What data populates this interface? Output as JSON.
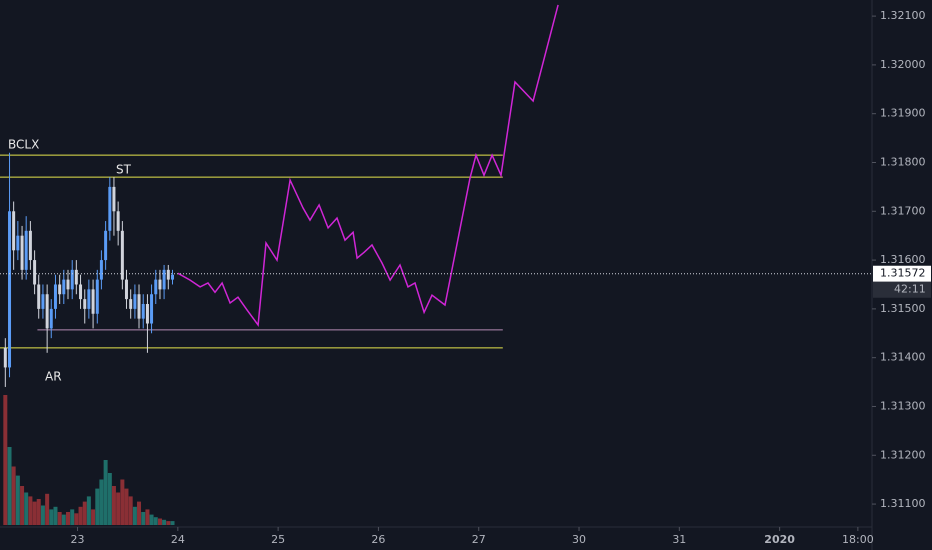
{
  "chart_data": {
    "type": "candlestick",
    "x": [
      -0.72,
      -0.678,
      -0.637,
      -0.595,
      -0.553,
      -0.512,
      -0.47,
      -0.428,
      -0.387,
      -0.345,
      -0.303,
      -0.262,
      -0.22,
      -0.178,
      -0.137,
      -0.095,
      -0.053,
      -0.012,
      0.03,
      0.072,
      0.113,
      0.155,
      0.197,
      0.238,
      0.28,
      0.322,
      0.363,
      0.405,
      0.447,
      0.488,
      0.53,
      0.572,
      0.613,
      0.655,
      0.697,
      0.738,
      0.78,
      0.822,
      0.863,
      0.905,
      0.947
    ],
    "open": [
      1.3142,
      1.3138,
      1.317,
      1.3162,
      1.3165,
      1.3158,
      1.3166,
      1.316,
      1.3155,
      1.315,
      1.3153,
      1.3146,
      1.315,
      1.3155,
      1.3153,
      1.3156,
      1.3154,
      1.3158,
      1.3155,
      1.3152,
      1.315,
      1.3154,
      1.3149,
      1.3156,
      1.316,
      1.3166,
      1.3175,
      1.317,
      1.3166,
      1.3156,
      1.3152,
      1.315,
      1.3153,
      1.3148,
      1.3151,
      1.3147,
      1.3153,
      1.3156,
      1.3154,
      1.3158,
      1.3156
    ],
    "high": [
      1.3144,
      1.3182,
      1.3172,
      1.3168,
      1.3167,
      1.3169,
      1.3168,
      1.3162,
      1.3157,
      1.3155,
      1.3155,
      1.3152,
      1.3157,
      1.3157,
      1.3158,
      1.3158,
      1.316,
      1.316,
      1.3157,
      1.3154,
      1.3156,
      1.3156,
      1.3158,
      1.3162,
      1.3168,
      1.3177,
      1.3177,
      1.3172,
      1.3168,
      1.3158,
      1.3154,
      1.3155,
      1.3155,
      1.3153,
      1.3153,
      1.3155,
      1.3158,
      1.3158,
      1.3159,
      1.3159,
      1.3158
    ],
    "low": [
      1.3134,
      1.3136,
      1.3158,
      1.316,
      1.3156,
      1.3156,
      1.3158,
      1.3153,
      1.3148,
      1.3148,
      1.3141,
      1.3144,
      1.3148,
      1.3151,
      1.3151,
      1.3152,
      1.3152,
      1.3153,
      1.315,
      1.3147,
      1.3148,
      1.3146,
      1.3147,
      1.3154,
      1.3158,
      1.3164,
      1.3165,
      1.3163,
      1.3154,
      1.315,
      1.3148,
      1.3148,
      1.3146,
      1.3146,
      1.3141,
      1.3145,
      1.3151,
      1.3152,
      1.3152,
      1.3154,
      1.3155
    ],
    "close": [
      1.3138,
      1.317,
      1.3162,
      1.3165,
      1.3158,
      1.3166,
      1.316,
      1.3155,
      1.315,
      1.3153,
      1.3146,
      1.315,
      1.3155,
      1.3153,
      1.3156,
      1.3154,
      1.3158,
      1.3155,
      1.3152,
      1.315,
      1.3154,
      1.3149,
      1.3156,
      1.316,
      1.3166,
      1.3175,
      1.317,
      1.3166,
      1.3156,
      1.3152,
      1.315,
      1.3153,
      1.3148,
      1.3151,
      1.3147,
      1.3153,
      1.3156,
      1.3154,
      1.3158,
      1.3156,
      1.3157
    ],
    "volumes": [
      100,
      60,
      45,
      38,
      30,
      25,
      22,
      18,
      20,
      15,
      24,
      12,
      14,
      10,
      8,
      10,
      12,
      9,
      14,
      18,
      22,
      12,
      28,
      35,
      50,
      40,
      30,
      25,
      35,
      28,
      22,
      14,
      18,
      10,
      12,
      8,
      6,
      5,
      4,
      3,
      3
    ],
    "volume_ylim": [
      0,
      100
    ],
    "up_color": "#5b9cf6",
    "down_color": "#d1d4dc",
    "volume_up_color": "#1f6f6a",
    "volume_down_color": "#8a2f35",
    "projection": {
      "color": "#d026d6",
      "x": [
        1.002,
        1.122,
        1.222,
        1.301,
        1.371,
        1.441,
        1.521,
        1.6,
        1.69,
        1.8,
        1.879,
        1.989,
        2.119,
        2.248,
        2.318,
        2.408,
        2.498,
        2.587,
        2.667,
        2.747,
        2.787,
        2.857,
        2.936,
        3.036,
        3.116,
        3.215,
        3.295,
        3.365,
        3.455,
        3.534,
        3.664,
        3.913,
        3.973,
        4.053,
        4.133,
        4.222,
        4.362,
        4.542,
        4.791
      ],
      "values": [
        1.31573,
        1.31559,
        1.31545,
        1.31553,
        1.31534,
        1.31553,
        1.31512,
        1.31524,
        1.31498,
        1.31467,
        1.31635,
        1.316,
        1.31764,
        1.31707,
        1.31682,
        1.31713,
        1.31666,
        1.31686,
        1.31641,
        1.31657,
        1.31604,
        1.31616,
        1.31631,
        1.31594,
        1.31559,
        1.3159,
        1.31545,
        1.31553,
        1.31493,
        1.31528,
        1.31508,
        1.31768,
        1.31815,
        1.31774,
        1.31815,
        1.31774,
        1.31965,
        1.31926,
        1.32123
      ]
    },
    "levels": [
      {
        "value": 1.31815,
        "start": -0.773,
        "end": 4.24,
        "color": "#e6e64c"
      },
      {
        "value": 1.3177,
        "start": -0.773,
        "end": 4.24,
        "color": "#e6e64c"
      },
      {
        "value": 1.31457,
        "start": -0.4,
        "end": 4.24,
        "color": "#b48ab4"
      },
      {
        "value": 1.3142,
        "start": -0.773,
        "end": 4.24,
        "color": "#e6e64c"
      }
    ],
    "annotations": [
      "BCLX",
      "ST",
      "AR"
    ],
    "last_price": 1.31572,
    "countdown": "42:11",
    "xlim": [
      -0.773,
      7.921
    ],
    "ylim": [
      1.31053,
      1.32133
    ],
    "xticks": [
      {
        "value": 0,
        "label": "23"
      },
      {
        "value": 1,
        "label": "24"
      },
      {
        "value": 2,
        "label": "25"
      },
      {
        "value": 3,
        "label": "26"
      },
      {
        "value": 4,
        "label": "27"
      },
      {
        "value": 5,
        "label": "30"
      },
      {
        "value": 6,
        "label": "31"
      },
      {
        "value": 7,
        "label": "2020"
      },
      {
        "value": 7.78,
        "label": "18:00"
      }
    ],
    "yticks": [
      {
        "value": 1.311,
        "label": "1.31100"
      },
      {
        "value": 1.312,
        "label": "1.31200"
      },
      {
        "value": 1.313,
        "label": "1.31300"
      },
      {
        "value": 1.314,
        "label": "1.31400"
      },
      {
        "value": 1.315,
        "label": "1.31500"
      },
      {
        "value": 1.316,
        "label": "1.31600"
      },
      {
        "value": 1.317,
        "label": "1.31700"
      },
      {
        "value": 1.318,
        "label": "1.31800"
      },
      {
        "value": 1.319,
        "label": "1.31900"
      },
      {
        "value": 1.32,
        "label": "1.32000"
      },
      {
        "value": 1.321,
        "label": "1.32100"
      }
    ],
    "grid": false
  }
}
